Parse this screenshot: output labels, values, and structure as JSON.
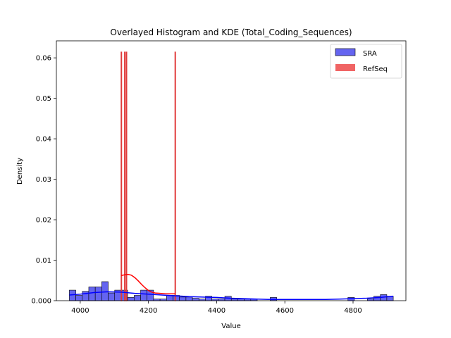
{
  "chart_data": {
    "type": "histogram",
    "title": "Overlayed Histogram and KDE (Total_Coding_Sequences)",
    "xlabel": "Value",
    "ylabel": "Density",
    "xlim": [
      3930,
      4955
    ],
    "ylim": [
      0,
      0.0642
    ],
    "xticks": [
      4000,
      4200,
      4400,
      4600,
      4800
    ],
    "xtick_labels": [
      "4000",
      "4200",
      "4400",
      "4600",
      "4800"
    ],
    "yticks": [
      0.0,
      0.01,
      0.02,
      0.03,
      0.04,
      0.05,
      0.06
    ],
    "ytick_labels": [
      "0.000",
      "0.01",
      "0.02",
      "0.03",
      "0.04",
      "0.05",
      "0.06"
    ],
    "grid": false,
    "legend": {
      "position": "top-right",
      "entries": [
        {
          "label": "SRA",
          "color": "#6464f0"
        },
        {
          "label": "RefSeq",
          "color": "#f06464"
        }
      ]
    },
    "series": [
      {
        "name": "SRA",
        "kind": "histogram",
        "fill": "#6464f0",
        "edge": "#000000",
        "kde_color": "#0000ff",
        "bins": [
          {
            "x0": 3968,
            "x1": 3987,
            "density": 0.0026
          },
          {
            "x0": 3987,
            "x1": 4006,
            "density": 0.0013
          },
          {
            "x0": 4006,
            "x1": 4025,
            "density": 0.0023
          },
          {
            "x0": 4025,
            "x1": 4044,
            "density": 0.0034
          },
          {
            "x0": 4044,
            "x1": 4063,
            "density": 0.0034
          },
          {
            "x0": 4063,
            "x1": 4082,
            "density": 0.0047
          },
          {
            "x0": 4082,
            "x1": 4101,
            "density": 0.0019
          },
          {
            "x0": 4101,
            "x1": 4120,
            "density": 0.0026
          },
          {
            "x0": 4120,
            "x1": 4139,
            "density": 0.0026
          },
          {
            "x0": 4139,
            "x1": 4158,
            "density": 0.0008
          },
          {
            "x0": 4158,
            "x1": 4177,
            "density": 0.0013
          },
          {
            "x0": 4177,
            "x1": 4196,
            "density": 0.0026
          },
          {
            "x0": 4196,
            "x1": 4215,
            "density": 0.0026
          },
          {
            "x0": 4215,
            "x1": 4234,
            "density": 0.0004
          },
          {
            "x0": 4234,
            "x1": 4253,
            "density": 0.0004
          },
          {
            "x0": 4253,
            "x1": 4272,
            "density": 0.0013
          },
          {
            "x0": 4272,
            "x1": 4291,
            "density": 0.0013
          },
          {
            "x0": 4291,
            "x1": 4310,
            "density": 0.0009
          },
          {
            "x0": 4310,
            "x1": 4329,
            "density": 0.0009
          },
          {
            "x0": 4329,
            "x1": 4348,
            "density": 0.0006
          },
          {
            "x0": 4348,
            "x1": 4367,
            "density": 0.0004
          },
          {
            "x0": 4367,
            "x1": 4386,
            "density": 0.0011
          },
          {
            "x0": 4386,
            "x1": 4405,
            "density": 0.0004
          },
          {
            "x0": 4405,
            "x1": 4424,
            "density": 0.0004
          },
          {
            "x0": 4424,
            "x1": 4443,
            "density": 0.0011
          },
          {
            "x0": 4443,
            "x1": 4462,
            "density": 0.0004
          },
          {
            "x0": 4462,
            "x1": 4481,
            "density": 0.0004
          },
          {
            "x0": 4481,
            "x1": 4500,
            "density": 0.0004
          },
          {
            "x0": 4500,
            "x1": 4519,
            "density": 0.0004
          },
          {
            "x0": 4557,
            "x1": 4576,
            "density": 0.0008
          },
          {
            "x0": 4785,
            "x1": 4804,
            "density": 0.0008
          },
          {
            "x0": 4842,
            "x1": 4861,
            "density": 0.0004
          },
          {
            "x0": 4861,
            "x1": 4880,
            "density": 0.0011
          },
          {
            "x0": 4880,
            "x1": 4899,
            "density": 0.0015
          },
          {
            "x0": 4899,
            "x1": 4918,
            "density": 0.0011
          }
        ],
        "kde": [
          [
            3968,
            0.0014
          ],
          [
            4000,
            0.0016
          ],
          [
            4040,
            0.002
          ],
          [
            4080,
            0.0022
          ],
          [
            4120,
            0.0021
          ],
          [
            4160,
            0.0018
          ],
          [
            4200,
            0.0016
          ],
          [
            4240,
            0.0014
          ],
          [
            4280,
            0.0012
          ],
          [
            4320,
            0.001
          ],
          [
            4360,
            0.0009
          ],
          [
            4400,
            0.0008
          ],
          [
            4440,
            0.0006
          ],
          [
            4480,
            0.0005
          ],
          [
            4520,
            0.0004
          ],
          [
            4560,
            0.0003
          ],
          [
            4600,
            0.0003
          ],
          [
            4640,
            0.0003
          ],
          [
            4680,
            0.0003
          ],
          [
            4720,
            0.0003
          ],
          [
            4760,
            0.0004
          ],
          [
            4800,
            0.0005
          ],
          [
            4840,
            0.0006
          ],
          [
            4880,
            0.0008
          ],
          [
            4918,
            0.0011
          ]
        ]
      },
      {
        "name": "RefSeq",
        "kind": "histogram",
        "fill": "#f06464",
        "edge": "#e03c3c",
        "kde_color": "#ff0000",
        "bins": [
          {
            "x0": 4120,
            "x1": 4120.6,
            "density": 0.0614
          },
          {
            "x0": 4130,
            "x1": 4130.6,
            "density": 0.0614
          },
          {
            "x0": 4135,
            "x1": 4135.6,
            "density": 0.0614
          },
          {
            "x0": 4278,
            "x1": 4278.6,
            "density": 0.0614
          }
        ],
        "kde": [
          [
            4120,
            0.0062
          ],
          [
            4130,
            0.0064
          ],
          [
            4140,
            0.0065
          ],
          [
            4150,
            0.0063
          ],
          [
            4160,
            0.0057
          ],
          [
            4170,
            0.0049
          ],
          [
            4180,
            0.004
          ],
          [
            4190,
            0.0032
          ],
          [
            4200,
            0.0025
          ],
          [
            4210,
            0.0021
          ],
          [
            4220,
            0.0019
          ],
          [
            4235,
            0.0018
          ],
          [
            4250,
            0.0017
          ],
          [
            4265,
            0.0017
          ],
          [
            4278,
            0.0017
          ]
        ]
      }
    ]
  }
}
